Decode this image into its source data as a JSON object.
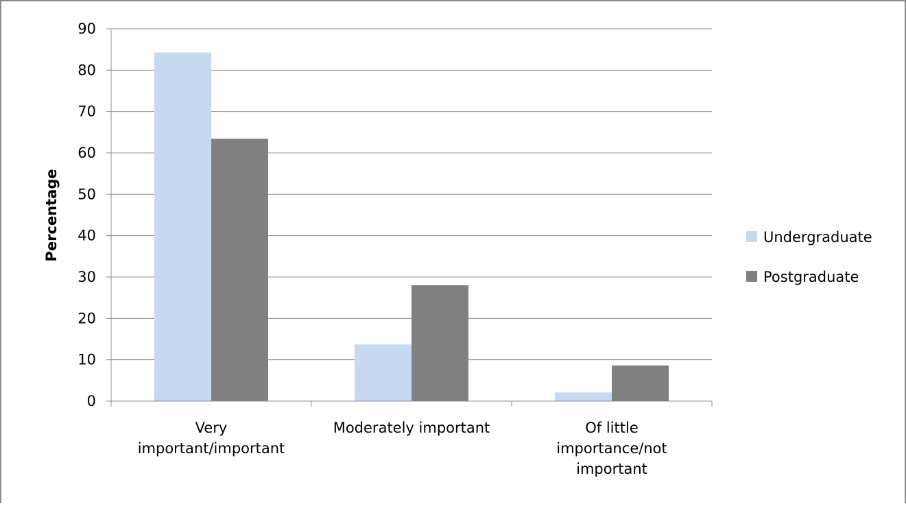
{
  "chart_data": {
    "type": "bar",
    "categories": [
      [
        "Very",
        "important/important"
      ],
      [
        "Moderately important"
      ],
      [
        "Of little",
        "importance/not",
        "important"
      ]
    ],
    "series": [
      {
        "name": "Undergraduate",
        "values": [
          84.3,
          13.7,
          2.1
        ],
        "color": "#c6d9f1"
      },
      {
        "name": "Postgraduate",
        "values": [
          63.4,
          28.0,
          8.6
        ],
        "color": "#808080"
      }
    ],
    "ylabel": "Percentage",
    "xlabel": "",
    "ylim": [
      0,
      90
    ],
    "yticks": [
      0,
      10,
      20,
      30,
      40,
      50,
      60,
      70,
      80,
      90
    ],
    "grid": true,
    "legend_position": "right"
  }
}
